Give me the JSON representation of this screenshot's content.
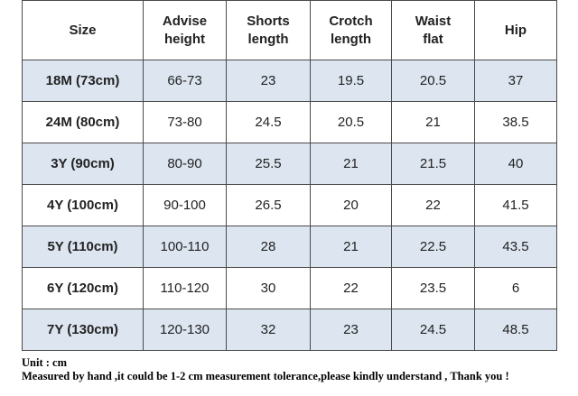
{
  "table": {
    "header": [
      [
        "Size"
      ],
      [
        "Advise",
        "height"
      ],
      [
        "Shorts",
        "length"
      ],
      [
        "Crotch",
        "length"
      ],
      [
        "Waist",
        "flat"
      ],
      [
        "Hip"
      ]
    ],
    "rows": [
      [
        "18M (73cm)",
        "66-73",
        "23",
        "19.5",
        "20.5",
        "37"
      ],
      [
        "24M (80cm)",
        "73-80",
        "24.5",
        "20.5",
        "21",
        "38.5"
      ],
      [
        "3Y (90cm)",
        "80-90",
        "25.5",
        "21",
        "21.5",
        "40"
      ],
      [
        "4Y (100cm)",
        "90-100",
        "26.5",
        "20",
        "22",
        "41.5"
      ],
      [
        "5Y (110cm)",
        "100-110",
        "28",
        "21",
        "22.5",
        "43.5"
      ],
      [
        "6Y (120cm)",
        "110-120",
        "30",
        "22",
        "23.5",
        "6"
      ],
      [
        "7Y (130cm)",
        "120-130",
        "32",
        "23",
        "24.5",
        "48.5"
      ]
    ]
  },
  "notes": [
    "Unit : cm",
    "Measured by hand ,it could be 1-2 cm measurement tolerance,please kindly understand , Thank you !"
  ]
}
